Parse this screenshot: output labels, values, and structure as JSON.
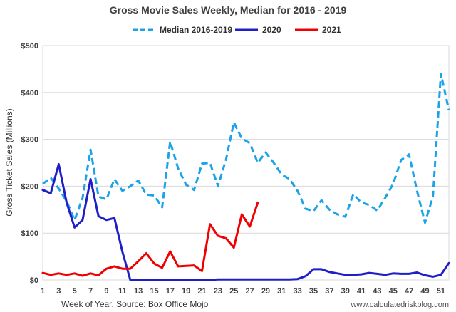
{
  "chart_data": {
    "type": "line",
    "title": "Gross Movie Sales Weekly, Median for 2016 - 2019",
    "xlabel": "Week of Year, Source: Box Office Mojo",
    "ylabel": "Gross Ticket Sales (Millions)",
    "source": "www.calculatedriskblog.com",
    "xlim": [
      1,
      52
    ],
    "ylim": [
      0,
      500
    ],
    "x_ticks": [
      1,
      3,
      5,
      7,
      9,
      11,
      13,
      15,
      17,
      19,
      21,
      23,
      25,
      27,
      29,
      31,
      33,
      35,
      37,
      39,
      41,
      43,
      45,
      47,
      49,
      51
    ],
    "y_ticks": [
      0,
      100,
      200,
      300,
      400,
      500
    ],
    "y_tick_labels": [
      "$0",
      "$100",
      "$200",
      "$300",
      "$400",
      "$500"
    ],
    "grid": "horizontal",
    "legend_position": "top",
    "series": [
      {
        "name": "Median 2016-2019",
        "style": "dashed",
        "color": "#1aa3e8",
        "x": [
          1,
          2,
          3,
          4,
          5,
          6,
          7,
          8,
          9,
          10,
          11,
          12,
          13,
          14,
          15,
          16,
          17,
          18,
          19,
          20,
          21,
          22,
          23,
          24,
          25,
          26,
          27,
          28,
          29,
          30,
          31,
          32,
          33,
          34,
          35,
          36,
          37,
          38,
          39,
          40,
          41,
          42,
          43,
          44,
          45,
          46,
          47,
          48,
          49,
          50,
          51,
          52
        ],
        "y": [
          205,
          218,
          195,
          168,
          128,
          175,
          278,
          178,
          172,
          215,
          190,
          200,
          212,
          182,
          180,
          155,
          295,
          238,
          203,
          192,
          248,
          250,
          200,
          256,
          336,
          302,
          292,
          250,
          272,
          250,
          225,
          215,
          190,
          152,
          147,
          170,
          150,
          140,
          135,
          183,
          165,
          160,
          148,
          175,
          205,
          256,
          268,
          190,
          122,
          178,
          440,
          362
        ]
      },
      {
        "name": "2020",
        "style": "solid",
        "color": "#1f1fc7",
        "x": [
          1,
          2,
          3,
          4,
          5,
          6,
          7,
          8,
          9,
          10,
          11,
          12,
          13,
          14,
          15,
          16,
          17,
          18,
          19,
          20,
          21,
          22,
          23,
          24,
          25,
          26,
          27,
          28,
          29,
          30,
          31,
          32,
          33,
          34,
          35,
          36,
          37,
          38,
          39,
          40,
          41,
          42,
          43,
          44,
          45,
          46,
          47,
          48,
          49,
          50,
          51,
          52
        ],
        "y": [
          192,
          185,
          247,
          165,
          112,
          128,
          215,
          136,
          128,
          132,
          60,
          0,
          0,
          0,
          0,
          0,
          0,
          0,
          0,
          0,
          0,
          0,
          1,
          1,
          1,
          1,
          1,
          1,
          1,
          1,
          1,
          1,
          2,
          8,
          23,
          23,
          17,
          14,
          11,
          11,
          12,
          15,
          13,
          11,
          14,
          13,
          13,
          16,
          10,
          7,
          11,
          36
        ]
      },
      {
        "name": "2021",
        "style": "solid",
        "color": "#f00000",
        "x": [
          1,
          2,
          3,
          4,
          5,
          6,
          7,
          8,
          9,
          10,
          11,
          12,
          13,
          14,
          15,
          16,
          17,
          18,
          19,
          20,
          21,
          22,
          23,
          24,
          25,
          26,
          27,
          28
        ],
        "y": [
          15,
          11,
          14,
          11,
          14,
          9,
          14,
          10,
          24,
          29,
          24,
          24,
          40,
          57,
          35,
          26,
          61,
          29,
          30,
          31,
          19,
          119,
          94,
          89,
          69,
          140,
          114,
          165
        ]
      }
    ]
  }
}
